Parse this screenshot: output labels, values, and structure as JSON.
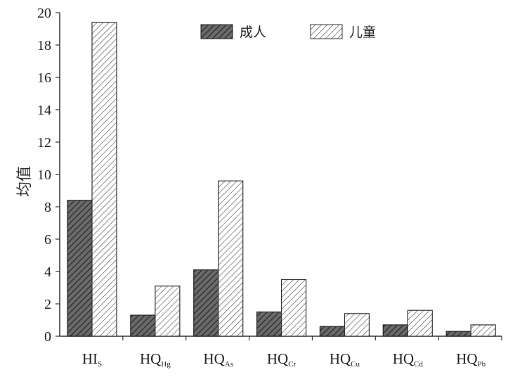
{
  "chart_data": {
    "type": "bar",
    "categories": [
      {
        "main": "HI",
        "sub": "S"
      },
      {
        "main": "HQ",
        "sub": "Hg"
      },
      {
        "main": "HQ",
        "sub": "As"
      },
      {
        "main": "HQ",
        "sub": "Cr"
      },
      {
        "main": "HQ",
        "sub": "Cu"
      },
      {
        "main": "HQ",
        "sub": "Cd"
      },
      {
        "main": "HQ",
        "sub": "Pb"
      }
    ],
    "series": [
      {
        "name": "成人",
        "values": [
          8.4,
          1.3,
          4.1,
          1.5,
          0.6,
          0.7,
          0.3
        ],
        "fill": "#5a5a5a",
        "stroke": "#222222",
        "pattern": "dense-diagonal"
      },
      {
        "name": "儿童",
        "values": [
          19.4,
          3.1,
          9.6,
          3.5,
          1.4,
          1.6,
          0.7
        ],
        "fill": "#ffffff",
        "stroke": "#333333",
        "pattern": "light-diagonal"
      }
    ],
    "ylabel": "均值",
    "xlabel": "",
    "ylim": [
      0,
      20
    ],
    "yticks": [
      0,
      2,
      4,
      6,
      8,
      10,
      12,
      14,
      16,
      18,
      20
    ],
    "legend_position": "top-right",
    "grid": false
  }
}
